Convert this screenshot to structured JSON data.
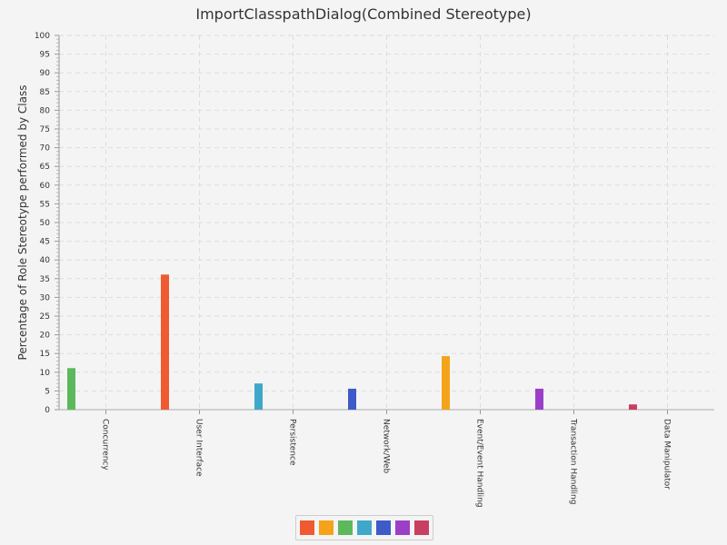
{
  "chart_data": {
    "type": "bar",
    "title": "ImportClasspathDialog(Combined Stereotype)",
    "xlabel": "",
    "ylabel": "Percentage of Role Stereotype performed by Class",
    "ylim": [
      0,
      100
    ],
    "ytick_step": 5,
    "grid": true,
    "legend_position": "bottom",
    "categories": [
      "Concurrency",
      "User Interface",
      "Persistence",
      "Network/Web",
      "Event/Event Handling",
      "Transaction Handling",
      "Data Manipulator"
    ],
    "values": [
      11.1,
      36.1,
      7.0,
      5.6,
      14.3,
      5.6,
      1.4
    ],
    "bar_colors": [
      "#5cb85c",
      "#f05a30",
      "#3fa8c8",
      "#3f5bc8",
      "#f5a31a",
      "#9b3fc8",
      "#c83f62"
    ],
    "legend_colors": [
      "#f05a30",
      "#f5a31a",
      "#5cb85c",
      "#3fa8c8",
      "#3f5bc8",
      "#9b3fc8",
      "#c83f62"
    ]
  }
}
